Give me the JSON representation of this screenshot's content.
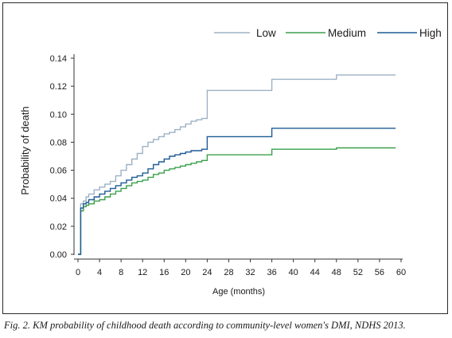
{
  "chart_data": {
    "type": "line",
    "ylabel": "Probability of death",
    "xlabel": "Age (months)",
    "xlim": [
      0,
      60
    ],
    "ylim": [
      0,
      0.14
    ],
    "x_ticks": [
      "0",
      "4",
      "8",
      "12",
      "16",
      "20",
      "24",
      "28",
      "32",
      "36",
      "40",
      "44",
      "48",
      "52",
      "56",
      "60"
    ],
    "y_ticks": [
      "0.00",
      "0.02",
      "0.04",
      "0.06",
      "0.08",
      "0.10",
      "0.12",
      "0.14"
    ],
    "grid": false,
    "legend_position": "top-right",
    "step": true,
    "series": [
      {
        "name": "Low",
        "color": "#9db1c4",
        "points": [
          [
            0,
            0
          ],
          [
            0.5,
            0.036
          ],
          [
            1,
            0.038
          ],
          [
            1.5,
            0.041
          ],
          [
            2,
            0.043
          ],
          [
            3,
            0.046
          ],
          [
            4,
            0.048
          ],
          [
            5,
            0.05
          ],
          [
            6,
            0.052
          ],
          [
            7,
            0.056
          ],
          [
            8,
            0.06
          ],
          [
            9,
            0.064
          ],
          [
            10,
            0.068
          ],
          [
            11,
            0.072
          ],
          [
            12,
            0.077
          ],
          [
            13,
            0.08
          ],
          [
            14,
            0.082
          ],
          [
            15,
            0.084
          ],
          [
            16,
            0.086
          ],
          [
            17,
            0.087
          ],
          [
            18,
            0.089
          ],
          [
            19,
            0.091
          ],
          [
            20,
            0.093
          ],
          [
            21,
            0.095
          ],
          [
            22,
            0.096
          ],
          [
            23,
            0.097
          ],
          [
            24,
            0.117
          ],
          [
            36,
            0.125
          ],
          [
            48,
            0.128
          ],
          [
            59,
            0.128
          ]
        ]
      },
      {
        "name": "Medium",
        "color": "#3aa04b",
        "points": [
          [
            0,
            0
          ],
          [
            0.5,
            0.031
          ],
          [
            1,
            0.034
          ],
          [
            1.5,
            0.035
          ],
          [
            2,
            0.036
          ],
          [
            3,
            0.038
          ],
          [
            4,
            0.039
          ],
          [
            5,
            0.041
          ],
          [
            6,
            0.043
          ],
          [
            7,
            0.045
          ],
          [
            8,
            0.047
          ],
          [
            9,
            0.049
          ],
          [
            10,
            0.051
          ],
          [
            11,
            0.052
          ],
          [
            12,
            0.053
          ],
          [
            13,
            0.055
          ],
          [
            14,
            0.057
          ],
          [
            15,
            0.058
          ],
          [
            16,
            0.06
          ],
          [
            17,
            0.061
          ],
          [
            18,
            0.062
          ],
          [
            19,
            0.063
          ],
          [
            20,
            0.064
          ],
          [
            21,
            0.065
          ],
          [
            22,
            0.066
          ],
          [
            23,
            0.067
          ],
          [
            24,
            0.071
          ],
          [
            36,
            0.075
          ],
          [
            48,
            0.076
          ],
          [
            59,
            0.076
          ]
        ]
      },
      {
        "name": "High",
        "color": "#1f5a96",
        "points": [
          [
            0,
            0
          ],
          [
            0.5,
            0.033
          ],
          [
            1,
            0.036
          ],
          [
            1.5,
            0.037
          ],
          [
            2,
            0.039
          ],
          [
            3,
            0.041
          ],
          [
            4,
            0.043
          ],
          [
            5,
            0.045
          ],
          [
            6,
            0.047
          ],
          [
            7,
            0.049
          ],
          [
            8,
            0.051
          ],
          [
            9,
            0.053
          ],
          [
            10,
            0.055
          ],
          [
            11,
            0.056
          ],
          [
            12,
            0.058
          ],
          [
            13,
            0.061
          ],
          [
            14,
            0.064
          ],
          [
            15,
            0.066
          ],
          [
            16,
            0.068
          ],
          [
            17,
            0.07
          ],
          [
            18,
            0.071
          ],
          [
            19,
            0.072
          ],
          [
            20,
            0.073
          ],
          [
            21,
            0.074
          ],
          [
            22,
            0.074
          ],
          [
            23,
            0.075
          ],
          [
            24,
            0.084
          ],
          [
            36,
            0.09
          ],
          [
            48,
            0.09
          ],
          [
            59,
            0.09
          ]
        ]
      }
    ]
  },
  "caption": "Fig. 2. KM probability of childhood death according to community-level women's DMI, NDHS 2013."
}
